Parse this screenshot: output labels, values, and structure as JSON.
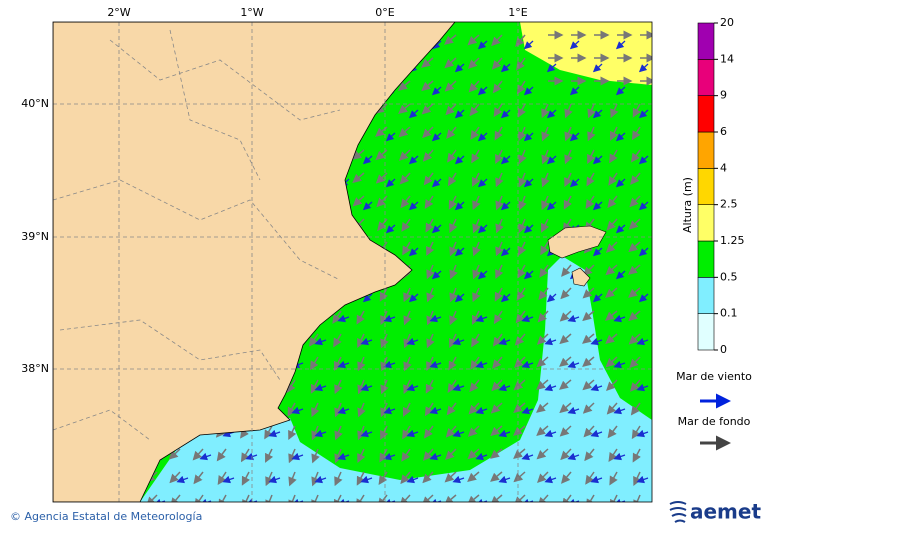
{
  "map": {
    "x_axis_labels": [
      "2°W",
      "1°W",
      "0°E",
      "1°E"
    ],
    "y_axis_labels": [
      "40°N",
      "39°N",
      "38°N"
    ]
  },
  "colorbar": {
    "title": "Altura (m)",
    "levels": [
      "0",
      "0.1",
      "0.5",
      "1.25",
      "2.5",
      "4",
      "6",
      "9",
      "14",
      "20"
    ],
    "colors": [
      "#e0ffff",
      "#80eeff",
      "#00ee00",
      "#ffff66",
      "#ffd700",
      "#ffa500",
      "#ff0000",
      "#e8007a",
      "#a000b0"
    ]
  },
  "legend": {
    "wind_sea": "Mar de viento",
    "swell": "Mar de fondo"
  },
  "footer": {
    "credit": "© Agencia Estatal de Meteorología",
    "logo": "aemet"
  }
}
